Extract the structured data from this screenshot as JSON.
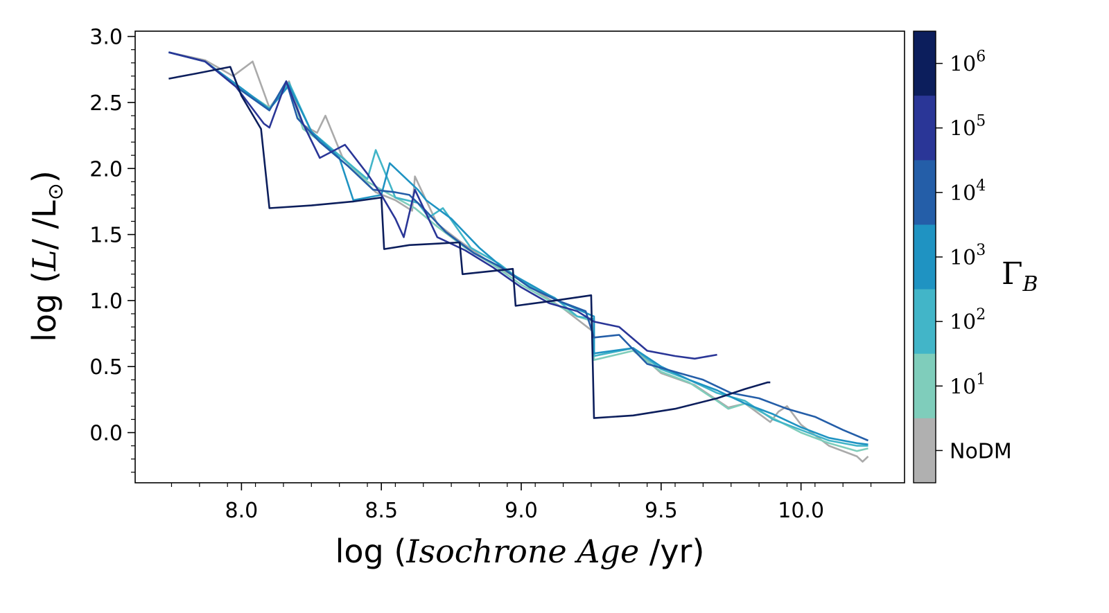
{
  "chart_data": {
    "type": "line",
    "xlabel": {
      "prefix": "log (",
      "math": "Isochrone Age",
      "suffix": " /yr)"
    },
    "ylabel": {
      "prefix": "log (",
      "math": "L",
      "suffix": "/ /L",
      "sub": "⊙",
      "close": ")"
    },
    "xlim": [
      7.62,
      10.37
    ],
    "ylim": [
      -0.38,
      3.04
    ],
    "xticks": [
      8.0,
      8.5,
      9.0,
      9.5,
      10.0
    ],
    "xtick_labels": [
      "8.0",
      "8.5",
      "9.0",
      "9.5",
      "10.0"
    ],
    "yticks": [
      0.0,
      0.5,
      1.0,
      1.5,
      2.0,
      2.5,
      3.0
    ],
    "ytick_labels": [
      "0.0",
      "0.5",
      "1.0",
      "1.5",
      "2.0",
      "2.5",
      "3.0"
    ],
    "grid": false,
    "colorbar": {
      "title": "Γ",
      "title_sub": "B",
      "labels": [
        {
          "base": "10",
          "exp": "6"
        },
        {
          "base": "10",
          "exp": "5"
        },
        {
          "base": "10",
          "exp": "4"
        },
        {
          "base": "10",
          "exp": "3"
        },
        {
          "base": "10",
          "exp": "2"
        },
        {
          "base": "10",
          "exp": "1"
        },
        {
          "base": "NoDM",
          "exp": ""
        }
      ],
      "colors": [
        "#0c1e5c",
        "#2a3697",
        "#245ea8",
        "#1f93c2",
        "#42b5c8",
        "#7fcdbb",
        "#b0b0b0"
      ]
    },
    "series": [
      {
        "color": "#aaaaaa",
        "points": [
          [
            7.74,
            2.88
          ],
          [
            7.87,
            2.82
          ],
          [
            7.97,
            2.7
          ],
          [
            8.04,
            2.81
          ],
          [
            8.1,
            2.46
          ],
          [
            8.17,
            2.66
          ],
          [
            8.22,
            2.33
          ],
          [
            8.27,
            2.27
          ],
          [
            8.3,
            2.4
          ],
          [
            8.36,
            2.09
          ],
          [
            8.43,
            1.93
          ],
          [
            8.48,
            1.82
          ],
          [
            8.55,
            1.76
          ],
          [
            8.61,
            1.68
          ],
          [
            8.62,
            1.94
          ],
          [
            8.7,
            1.58
          ],
          [
            8.78,
            1.45
          ],
          [
            8.88,
            1.3
          ],
          [
            9.0,
            1.15
          ],
          [
            9.15,
            0.94
          ],
          [
            9.26,
            0.76
          ],
          [
            9.26,
            0.58
          ],
          [
            9.4,
            0.64
          ],
          [
            9.5,
            0.45
          ],
          [
            9.62,
            0.36
          ],
          [
            9.74,
            0.19
          ],
          [
            9.8,
            0.22
          ],
          [
            9.89,
            0.08
          ],
          [
            9.92,
            0.16
          ],
          [
            9.95,
            0.2
          ],
          [
            10.0,
            0.06
          ],
          [
            10.1,
            -0.1
          ],
          [
            10.2,
            -0.18
          ],
          [
            10.22,
            -0.22
          ],
          [
            10.24,
            -0.18
          ]
        ]
      },
      {
        "color": "#7fcdbb",
        "points": [
          [
            7.74,
            2.88
          ],
          [
            7.87,
            2.81
          ],
          [
            7.98,
            2.63
          ],
          [
            8.1,
            2.46
          ],
          [
            8.17,
            2.64
          ],
          [
            8.22,
            2.3
          ],
          [
            8.35,
            2.1
          ],
          [
            8.45,
            1.9
          ],
          [
            8.55,
            1.78
          ],
          [
            8.62,
            1.7
          ],
          [
            8.7,
            1.56
          ],
          [
            8.8,
            1.4
          ],
          [
            8.9,
            1.27
          ],
          [
            9.0,
            1.12
          ],
          [
            9.1,
            1.0
          ],
          [
            9.2,
            0.88
          ],
          [
            9.26,
            0.84
          ],
          [
            9.26,
            0.55
          ],
          [
            9.4,
            0.62
          ],
          [
            9.5,
            0.46
          ],
          [
            9.6,
            0.38
          ],
          [
            9.7,
            0.24
          ],
          [
            9.74,
            0.18
          ],
          [
            9.8,
            0.22
          ],
          [
            9.89,
            0.12
          ],
          [
            10.0,
            0.0
          ],
          [
            10.1,
            -0.08
          ],
          [
            10.2,
            -0.14
          ],
          [
            10.24,
            -0.12
          ]
        ]
      },
      {
        "color": "#42b5c8",
        "points": [
          [
            7.74,
            2.88
          ],
          [
            7.87,
            2.81
          ],
          [
            7.98,
            2.63
          ],
          [
            8.1,
            2.45
          ],
          [
            8.17,
            2.65
          ],
          [
            8.25,
            2.28
          ],
          [
            8.35,
            2.1
          ],
          [
            8.45,
            1.92
          ],
          [
            8.48,
            2.14
          ],
          [
            8.55,
            1.78
          ],
          [
            8.63,
            1.74
          ],
          [
            8.67,
            1.63
          ],
          [
            8.72,
            1.7
          ],
          [
            8.82,
            1.4
          ],
          [
            8.92,
            1.28
          ],
          [
            9.02,
            1.12
          ],
          [
            9.12,
            1.02
          ],
          [
            9.2,
            0.88
          ],
          [
            9.26,
            0.86
          ],
          [
            9.26,
            0.58
          ],
          [
            9.4,
            0.64
          ],
          [
            9.5,
            0.48
          ],
          [
            9.6,
            0.4
          ],
          [
            9.7,
            0.3
          ],
          [
            9.8,
            0.24
          ],
          [
            9.9,
            0.1
          ],
          [
            10.0,
            0.02
          ],
          [
            10.1,
            -0.06
          ],
          [
            10.2,
            -0.1
          ],
          [
            10.24,
            -0.1
          ]
        ]
      },
      {
        "color": "#1f93c2",
        "points": [
          [
            7.74,
            2.88
          ],
          [
            7.87,
            2.81
          ],
          [
            7.98,
            2.64
          ],
          [
            8.1,
            2.45
          ],
          [
            8.17,
            2.63
          ],
          [
            8.25,
            2.28
          ],
          [
            8.35,
            2.08
          ],
          [
            8.4,
            1.76
          ],
          [
            8.5,
            1.8
          ],
          [
            8.53,
            2.04
          ],
          [
            8.63,
            1.84
          ],
          [
            8.66,
            1.76
          ],
          [
            8.75,
            1.62
          ],
          [
            8.85,
            1.4
          ],
          [
            8.95,
            1.22
          ],
          [
            9.05,
            1.1
          ],
          [
            9.15,
            0.98
          ],
          [
            9.26,
            0.88
          ],
          [
            9.26,
            0.6
          ],
          [
            9.4,
            0.64
          ],
          [
            9.5,
            0.5
          ],
          [
            9.6,
            0.4
          ],
          [
            9.7,
            0.32
          ],
          [
            9.8,
            0.22
          ],
          [
            9.9,
            0.14
          ],
          [
            10.0,
            0.04
          ],
          [
            10.1,
            -0.04
          ],
          [
            10.2,
            -0.08
          ],
          [
            10.24,
            -0.09
          ]
        ]
      },
      {
        "color": "#245ea8",
        "points": [
          [
            7.74,
            2.88
          ],
          [
            7.87,
            2.81
          ],
          [
            7.98,
            2.62
          ],
          [
            8.1,
            2.44
          ],
          [
            8.16,
            2.66
          ],
          [
            8.2,
            2.38
          ],
          [
            8.28,
            2.2
          ],
          [
            8.38,
            2.02
          ],
          [
            8.47,
            1.84
          ],
          [
            8.55,
            1.82
          ],
          [
            8.6,
            1.8
          ],
          [
            8.65,
            1.7
          ],
          [
            8.73,
            1.52
          ],
          [
            8.83,
            1.36
          ],
          [
            8.93,
            1.25
          ],
          [
            9.03,
            1.1
          ],
          [
            9.13,
            1.0
          ],
          [
            9.23,
            0.92
          ],
          [
            9.26,
            0.72
          ],
          [
            9.35,
            0.74
          ],
          [
            9.45,
            0.52
          ],
          [
            9.55,
            0.46
          ],
          [
            9.65,
            0.4
          ],
          [
            9.75,
            0.3
          ],
          [
            9.85,
            0.26
          ],
          [
            9.95,
            0.18
          ],
          [
            10.05,
            0.12
          ],
          [
            10.15,
            0.02
          ],
          [
            10.24,
            -0.06
          ]
        ]
      },
      {
        "color": "#2a3697",
        "points": [
          [
            7.74,
            2.88
          ],
          [
            7.87,
            2.81
          ],
          [
            7.98,
            2.62
          ],
          [
            8.08,
            2.34
          ],
          [
            8.1,
            2.31
          ],
          [
            8.16,
            2.66
          ],
          [
            8.22,
            2.34
          ],
          [
            8.28,
            2.08
          ],
          [
            8.37,
            2.18
          ],
          [
            8.45,
            1.96
          ],
          [
            8.5,
            1.8
          ],
          [
            8.55,
            1.62
          ],
          [
            8.58,
            1.48
          ],
          [
            8.62,
            1.84
          ],
          [
            8.7,
            1.48
          ],
          [
            8.8,
            1.38
          ],
          [
            8.9,
            1.25
          ],
          [
            9.0,
            1.1
          ],
          [
            9.1,
            0.98
          ],
          [
            9.2,
            0.92
          ],
          [
            9.26,
            0.84
          ],
          [
            9.35,
            0.8
          ],
          [
            9.45,
            0.62
          ],
          [
            9.55,
            0.58
          ],
          [
            9.62,
            0.56
          ],
          [
            9.7,
            0.59
          ]
        ]
      },
      {
        "color": "#0c1e5c",
        "points": [
          [
            7.74,
            2.68
          ],
          [
            7.84,
            2.72
          ],
          [
            7.96,
            2.77
          ],
          [
            8.0,
            2.55
          ],
          [
            8.07,
            2.3
          ],
          [
            8.1,
            1.7
          ],
          [
            8.25,
            1.72
          ],
          [
            8.4,
            1.75
          ],
          [
            8.5,
            1.78
          ],
          [
            8.51,
            1.39
          ],
          [
            8.6,
            1.42
          ],
          [
            8.78,
            1.44
          ],
          [
            8.79,
            1.2
          ],
          [
            8.97,
            1.24
          ],
          [
            8.98,
            0.96
          ],
          [
            9.12,
            1.0
          ],
          [
            9.25,
            1.04
          ],
          [
            9.26,
            0.11
          ],
          [
            9.4,
            0.13
          ],
          [
            9.55,
            0.18
          ],
          [
            9.7,
            0.26
          ],
          [
            9.8,
            0.33
          ],
          [
            9.88,
            0.38
          ],
          [
            9.89,
            0.38
          ]
        ]
      }
    ]
  }
}
